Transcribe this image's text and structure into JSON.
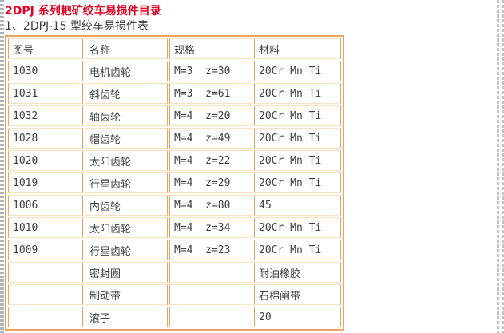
{
  "page": {
    "title": "2DPJ 系列耙矿绞车易损件目录",
    "subtitle": "1、2DPJ-15 型绞车易损件表"
  },
  "table": {
    "columns": [
      "图号",
      "名称",
      "规格",
      "材料"
    ],
    "rows": [
      [
        "1030",
        "电机齿轮",
        "M=3  z=30",
        "20Cr Mn Ti"
      ],
      [
        "1031",
        "斜齿轮",
        "M=3  z=61",
        "20Cr Mn Ti"
      ],
      [
        "1032",
        "轴齿轮",
        "M=4  z=20",
        "20Cr Mn Ti"
      ],
      [
        "1028",
        "帽齿轮",
        "M=4  z=49",
        "20Cr Mn Ti"
      ],
      [
        "1020",
        "太阳齿轮",
        "M=4  z=22",
        "20Cr Mn Ti"
      ],
      [
        "1019",
        "行星齿轮",
        "M=4  z=29",
        "20Cr Mn Ti"
      ],
      [
        "1006",
        "内齿轮",
        "M=4  z=80",
        "45"
      ],
      [
        "1010",
        "太阳齿轮",
        "M=4  z=34",
        "20Cr Mn Ti"
      ],
      [
        "1009",
        "行星齿轮",
        "M=4  z=23",
        "20Cr Mn Ti"
      ],
      [
        "",
        "密封圈",
        "",
        "耐油橡胶"
      ],
      [
        "",
        "制动带",
        "",
        "石棉闸带"
      ],
      [
        "",
        "滚子",
        "",
        "20"
      ]
    ]
  },
  "colors": {
    "title_red": "#e60021",
    "border_orange": "#f0a35e",
    "border_cream": "#f9e2c1",
    "guide_gray": "#b5b9bf",
    "text": "#404040"
  }
}
